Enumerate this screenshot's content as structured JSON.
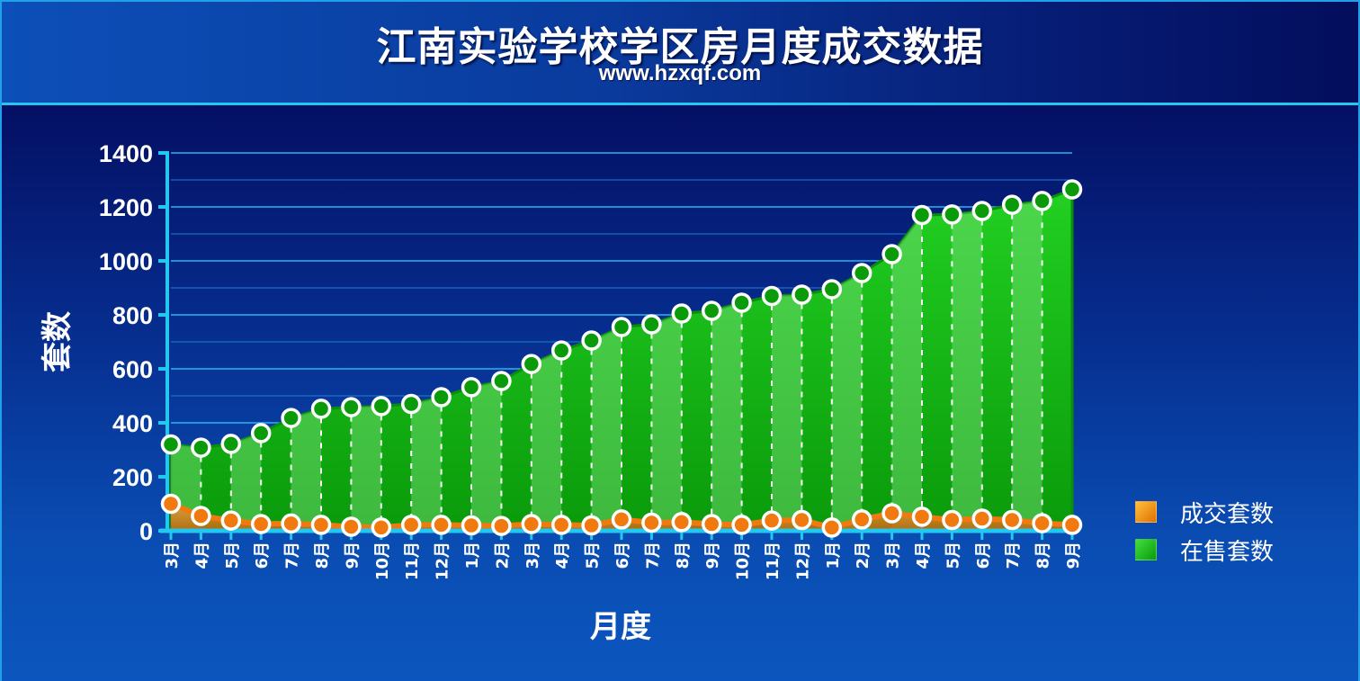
{
  "header": {
    "title": "江南实验学校学区房月度成交数据",
    "subtitle": "www.hzxqf.com"
  },
  "chart_data": {
    "type": "area",
    "xlabel": "月度",
    "ylabel": "套数",
    "ylim": [
      0,
      1400
    ],
    "yticks": [
      0,
      200,
      400,
      600,
      800,
      1000,
      1200,
      1400
    ],
    "grid": true,
    "legend_position": "right",
    "categories": [
      "3月",
      "4月",
      "5月",
      "6月",
      "7月",
      "8月",
      "9月",
      "10月",
      "11月",
      "12月",
      "1月",
      "2月",
      "3月",
      "4月",
      "5月",
      "6月",
      "7月",
      "8月",
      "9月",
      "10月",
      "11月",
      "12月",
      "1月",
      "2月",
      "3月",
      "4月",
      "5月",
      "6月",
      "7月",
      "8月",
      "9月"
    ],
    "series": [
      {
        "name": "成交套数",
        "color": "#f08010",
        "values": [
          100,
          55,
          38,
          25,
          27,
          22,
          15,
          12,
          22,
          22,
          20,
          18,
          25,
          22,
          20,
          42,
          30,
          32,
          25,
          22,
          38,
          40,
          12,
          42,
          65,
          52,
          40,
          45,
          40,
          28,
          22
        ]
      },
      {
        "name": "在售套数",
        "color": "#18c018",
        "values": [
          320,
          308,
          322,
          362,
          418,
          452,
          458,
          462,
          470,
          495,
          532,
          555,
          618,
          668,
          705,
          755,
          765,
          805,
          815,
          845,
          870,
          875,
          895,
          955,
          1025,
          1170,
          1172,
          1185,
          1208,
          1222,
          1265
        ]
      }
    ]
  }
}
